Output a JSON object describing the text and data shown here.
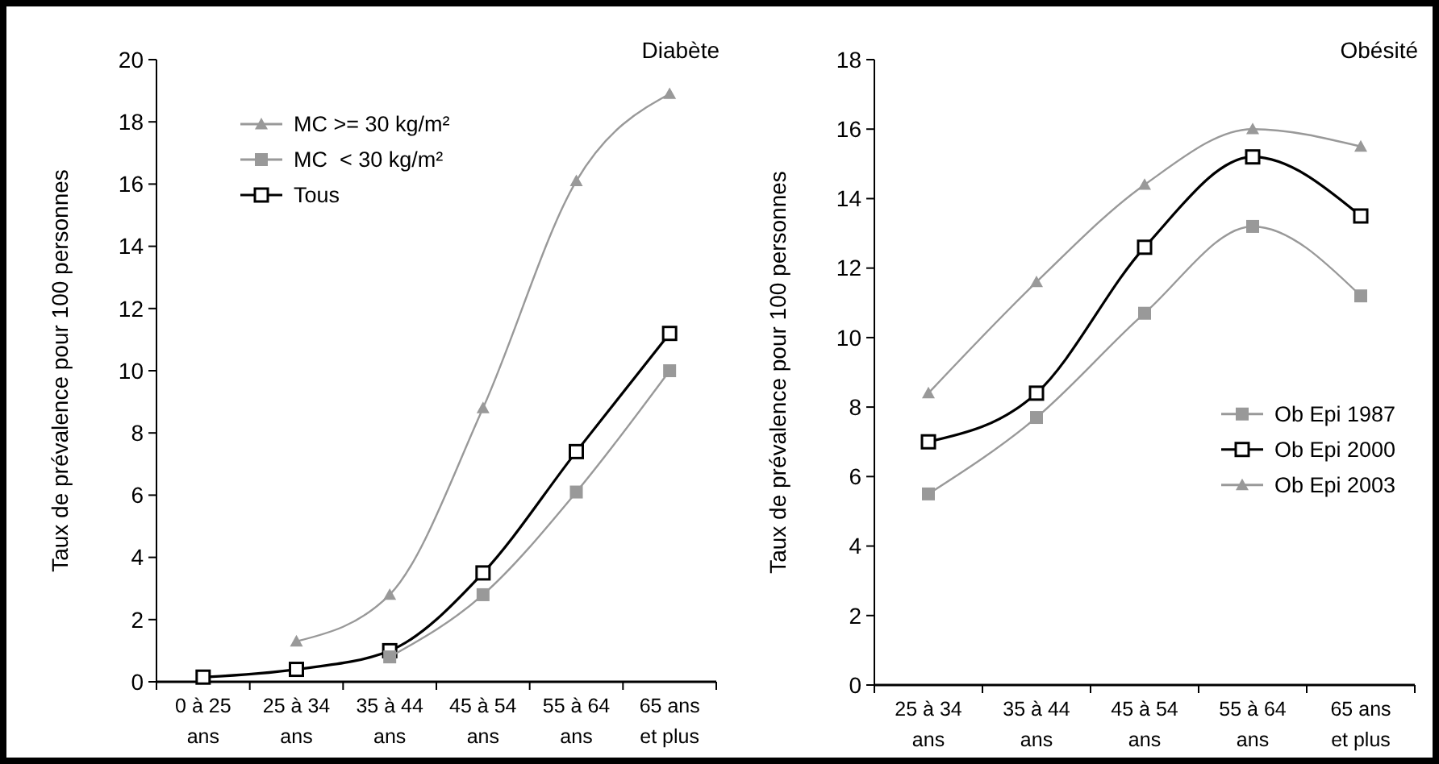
{
  "chart_data": [
    {
      "type": "line",
      "title": "Diabète",
      "ylabel": "Taux de prévalence pour 100 personnes",
      "categories": [
        "0 à 25 ans",
        "25 à 34 ans",
        "35 à 44 ans",
        "45 à 54 ans",
        "55 à 64 ans",
        "65 ans et plus"
      ],
      "series": [
        {
          "name": "MC >= 30 kg/m²",
          "color": "#999999",
          "marker": "triangle",
          "values": [
            null,
            1.3,
            2.8,
            8.8,
            16.1,
            18.9
          ]
        },
        {
          "name": "MC  < 30 kg/m²",
          "color": "#999999",
          "marker": "square",
          "values": [
            null,
            null,
            0.8,
            2.8,
            6.1,
            10.0
          ]
        },
        {
          "name": "Tous",
          "color": "#000000",
          "marker": "square",
          "values": [
            0.15,
            0.4,
            1.0,
            3.5,
            7.4,
            11.2
          ]
        }
      ],
      "ylim": [
        0,
        20
      ],
      "yticks": [
        0,
        2,
        4,
        6,
        8,
        10,
        12,
        14,
        16,
        18,
        20
      ],
      "grid": false,
      "legend": "top left"
    },
    {
      "type": "line",
      "title": "Obésité",
      "ylabel": "Taux de prévalence pour 100 personnes",
      "categories": [
        "25 à 34 ans",
        "35 à 44 ans",
        "45 à 54 ans",
        "55 à 64 ans",
        "65 ans et plus"
      ],
      "series": [
        {
          "name": "Ob Epi 1987",
          "color": "#999999",
          "marker": "square",
          "values": [
            5.5,
            7.7,
            10.7,
            13.2,
            11.2
          ]
        },
        {
          "name": "Ob Epi 2000",
          "color": "#000000",
          "marker": "square",
          "values": [
            7.0,
            8.4,
            12.6,
            15.2,
            13.5
          ]
        },
        {
          "name": "Ob Epi 2003",
          "color": "#999999",
          "marker": "triangle",
          "values": [
            8.4,
            11.6,
            14.4,
            16.0,
            15.5
          ]
        }
      ],
      "ylim": [
        0,
        18
      ],
      "yticks": [
        0,
        2,
        4,
        6,
        8,
        10,
        12,
        14,
        16,
        18
      ],
      "grid": false,
      "legend": "right"
    }
  ]
}
